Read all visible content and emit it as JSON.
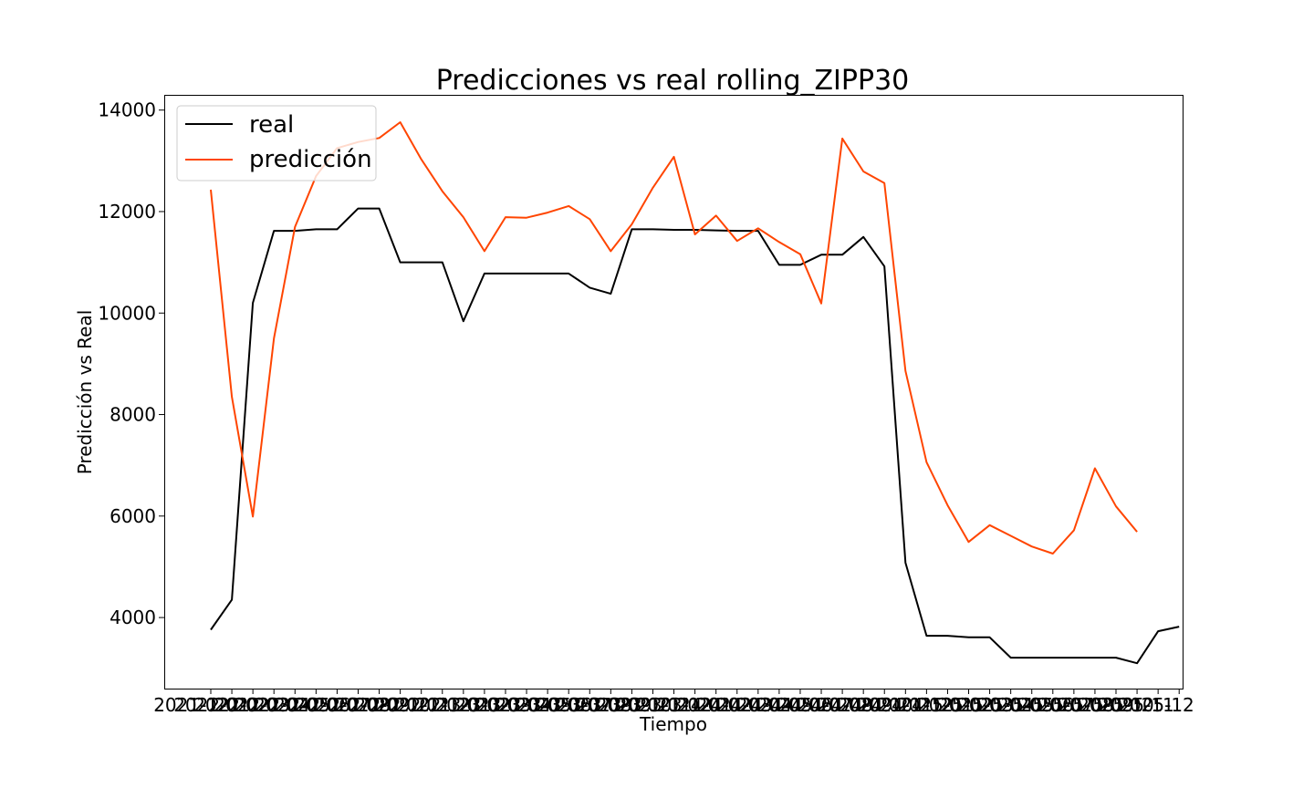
{
  "chart_data": {
    "type": "line",
    "title": "Predicciones vs real rolling_ZIPP30",
    "xlabel": "Tiempo",
    "ylabel": "Predicción vs Real",
    "ylim": [
      2600,
      14300
    ],
    "yticks": [
      4000,
      6000,
      8000,
      10000,
      12000,
      14000
    ],
    "x_tick_labels_text": [
      "2021-12",
      "2022-01",
      "2022-02",
      "2022-03",
      "2022-04",
      "2022-05",
      "2022-06",
      "2022-07",
      "2022-08",
      "2022-09",
      "2022-10",
      "2022-11",
      "2022-12",
      "2023-01",
      "2023-02",
      "2023-03",
      "2023-04",
      "2023-05",
      "2023-06",
      "2023-07",
      "2023-08",
      "2023-09",
      "2023-10",
      "2023-11",
      "2023-12",
      "2024-01",
      "2024-02",
      "2024-03",
      "2024-04",
      "2024-05",
      "2024-06",
      "2024-07",
      "2024-08",
      "2024-09",
      "2024-10",
      "2024-11",
      "2024-12",
      "2025-01",
      "2025-02",
      "2025-03",
      "2025-04",
      "2025-05",
      "2025-06",
      "2025-07",
      "2025-08",
      "2025-09",
      "2025-10",
      "2025-11",
      "2025-12"
    ],
    "grid": false,
    "legend_position": "top-left",
    "series": [
      {
        "name": "real",
        "color": "#000000",
        "values": [
          3760,
          4350,
          10200,
          11620,
          11620,
          11650,
          11650,
          12060,
          12060,
          11000,
          11000,
          11000,
          9840,
          10780,
          10780,
          10780,
          10780,
          10780,
          10500,
          10380,
          11650,
          11650,
          11640,
          11640,
          11630,
          11620,
          11620,
          10950,
          10950,
          11150,
          11150,
          11500,
          10920,
          5080,
          3640,
          3640,
          3610,
          3610,
          3210,
          3210,
          3210,
          3210,
          3210,
          3210,
          3100,
          3730,
          3820
        ]
      },
      {
        "name": "predicción",
        "color": "#ff4500",
        "values": [
          12430,
          8350,
          5990,
          9500,
          11700,
          12700,
          13250,
          13370,
          13450,
          13760,
          13030,
          12400,
          11890,
          11220,
          11890,
          11880,
          11980,
          12110,
          11850,
          11220,
          11750,
          12470,
          13080,
          11550,
          11920,
          11420,
          11670,
          11400,
          11160,
          10190,
          13440,
          12790,
          12560,
          8860,
          7060,
          6210,
          5490,
          5820,
          5610,
          5400,
          5260,
          5720,
          6940,
          6190,
          5690
        ]
      }
    ]
  }
}
